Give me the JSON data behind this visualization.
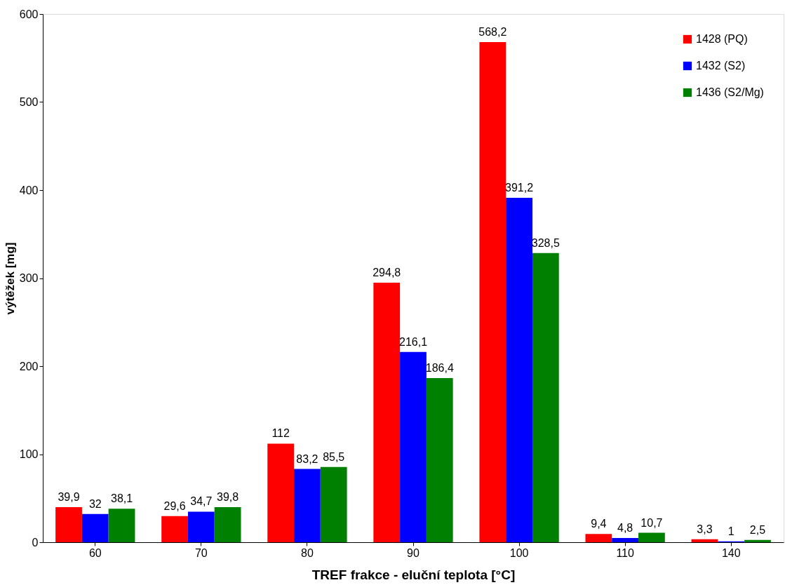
{
  "chart_data": {
    "type": "bar",
    "xlabel": "TREF frakce - eluční teplota [°C]",
    "ylabel": "výtěžek [mg]",
    "categories": [
      "60",
      "70",
      "80",
      "90",
      "100",
      "110",
      "140"
    ],
    "series": [
      {
        "name": "1428 (PQ)",
        "color": "#ff0000",
        "values": [
          39.9,
          29.6,
          112,
          294.8,
          568.2,
          9.4,
          3.3
        ],
        "value_labels": [
          "39,9",
          "29,6",
          "112",
          "294,8",
          "568,2",
          "9,4",
          "3,3"
        ]
      },
      {
        "name": "1432 (S2)",
        "color": "#0000ff",
        "values": [
          32,
          34.7,
          83.2,
          216.1,
          391.2,
          4.8,
          1
        ],
        "value_labels": [
          "32",
          "34,7",
          "83,2",
          "216,1",
          "391,2",
          "4,8",
          "1"
        ]
      },
      {
        "name": "1436 (S2/Mg)",
        "color": "#008000",
        "values": [
          38.1,
          39.8,
          85.5,
          186.4,
          328.5,
          10.7,
          2.5
        ],
        "value_labels": [
          "38,1",
          "39,8",
          "85,5",
          "186,4",
          "328,5",
          "10,7",
          "2,5"
        ]
      }
    ],
    "ylim": [
      0,
      600
    ],
    "yticks": [
      0,
      100,
      200,
      300,
      400,
      500,
      600
    ],
    "grid": false,
    "legend": "top right"
  }
}
